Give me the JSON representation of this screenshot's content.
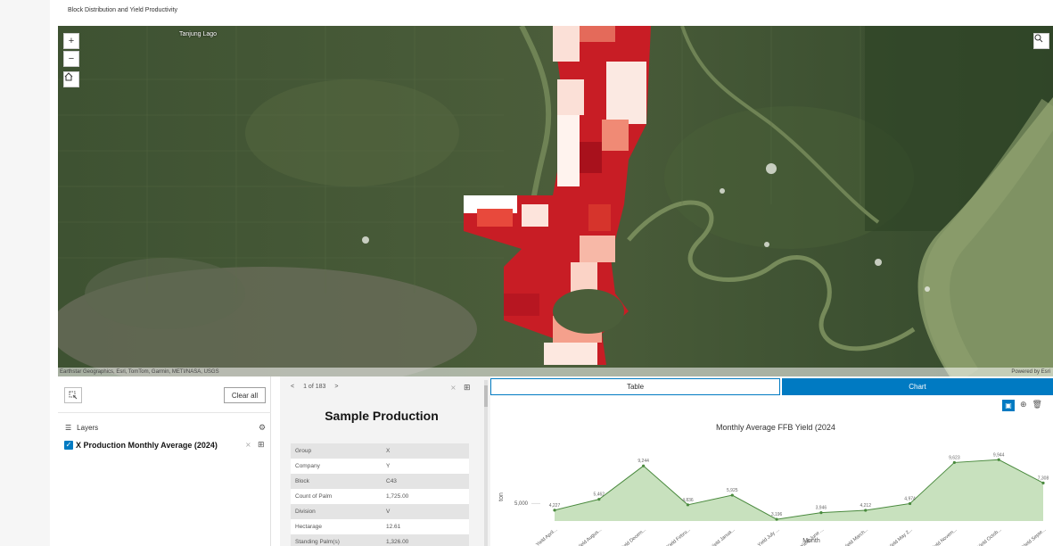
{
  "app": {
    "title": "Block Distribution and Yield Productivity"
  },
  "map": {
    "place_label": "Tanjung Lago",
    "zoom_in": "+",
    "zoom_out": "−",
    "attribution": "Earthstar Geographics, Esri, TomTom, Garmin, METI/NASA, USGS",
    "powered_by": "Powered by Esri"
  },
  "layers_panel": {
    "clear_label": "Clear all",
    "heading": "Layers",
    "layer_name": "X Production Monthly Average (2024)"
  },
  "feature_panel": {
    "prev": "<",
    "page_label": "1 of 183",
    "next": ">",
    "title": "Sample Production",
    "attributes": [
      {
        "key": "Group",
        "value": "X"
      },
      {
        "key": "Company",
        "value": "Y"
      },
      {
        "key": "Block",
        "value": "C43"
      },
      {
        "key": "Count of Palm",
        "value": "1,725.00"
      },
      {
        "key": "Division",
        "value": "V"
      },
      {
        "key": "Hectarage",
        "value": "12.61"
      },
      {
        "key": "Standing Palm(s)",
        "value": "1,326.00"
      }
    ]
  },
  "chart_panel": {
    "tab_table": "Table",
    "tab_chart": "Chart"
  },
  "colors": {
    "accent": "#007ac2",
    "series": "#4a8a3e",
    "fill": "#b6d7a8"
  },
  "chart_data": {
    "type": "area",
    "title": "Monthly Average FFB Yield (2024",
    "xlabel": "Month",
    "ylabel": "ton",
    "ytick": "5,000",
    "categories": [
      "Yield April...",
      "Yield Augus...",
      "Yield Decem...",
      "Yield Febru...",
      "Yield Janua...",
      "Yield July ...",
      "Yield June ...",
      "Yield March...",
      "Yield May 2...",
      "Yield Novem...",
      "Yield Octob...",
      "Yield Septe..."
    ],
    "values": [
      4227,
      5462,
      9244,
      4836,
      5925,
      3196,
      3946,
      4212,
      4974,
      9623,
      9944,
      7308
    ],
    "value_labels": [
      "4,227",
      "5,462",
      "9,244",
      "4,836",
      "5,925",
      "3,196",
      "3,946",
      "4,212",
      "4,974",
      "9,623",
      "9,944",
      "7,308"
    ],
    "ylim": [
      3000,
      11000
    ]
  }
}
